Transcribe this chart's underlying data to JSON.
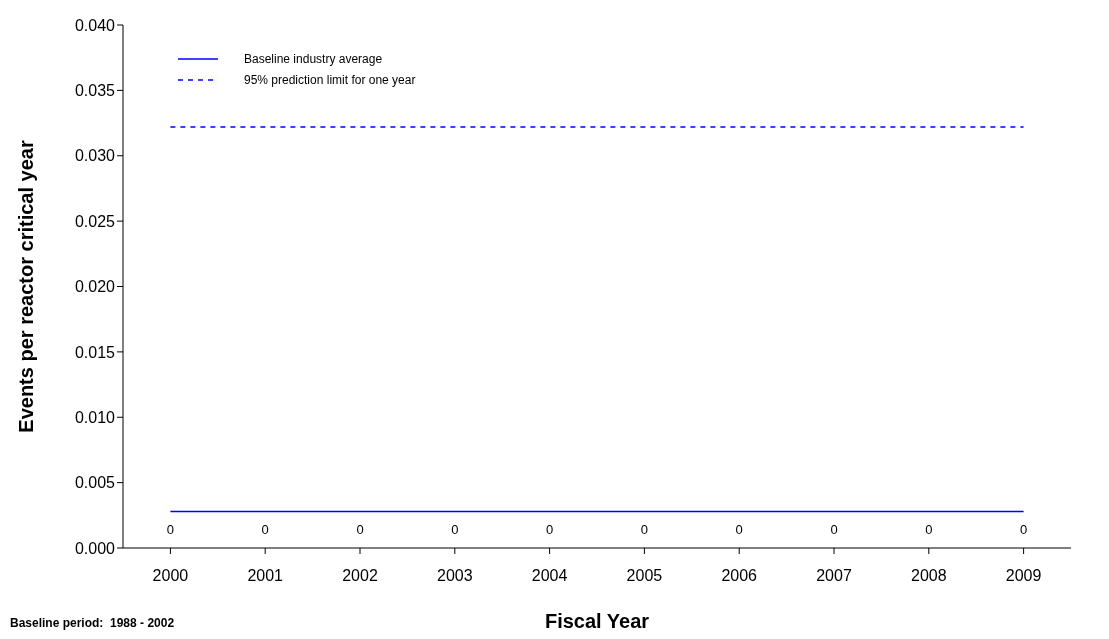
{
  "chart_data": {
    "type": "bar",
    "xlabel": "Fiscal Year",
    "ylabel": "Events per reactor critical year",
    "categories": [
      "2000",
      "2001",
      "2002",
      "2003",
      "2004",
      "2005",
      "2006",
      "2007",
      "2008",
      "2009"
    ],
    "series": [
      {
        "color": "#0000ff",
        "values": [
          0,
          0,
          0,
          0,
          0,
          0,
          0,
          0,
          0,
          0
        ],
        "value_labels": [
          "0",
          "0",
          "0",
          "0",
          "0",
          "0",
          "0",
          "0",
          "0",
          "0"
        ]
      },
      {
        "type": "line",
        "name": "Baseline industry average",
        "color": "#0000ff",
        "line_style": "solid",
        "values": [
          0.0028,
          0.0028,
          0.0028,
          0.0028,
          0.0028,
          0.0028,
          0.0028,
          0.0028,
          0.0028,
          0.0028
        ]
      },
      {
        "type": "line",
        "name": "95% prediction limit for one year",
        "color": "#0000ff",
        "line_style": "dashed",
        "values": [
          0.0322,
          0.0322,
          0.0322,
          0.0322,
          0.0322,
          0.0322,
          0.0322,
          0.0322,
          0.0322,
          0.0322
        ]
      }
    ],
    "ylim": [
      0,
      0.04
    ],
    "yticks": [
      {
        "value": 0,
        "label": "0.000"
      },
      {
        "value": 0.005,
        "label": "0.005"
      },
      {
        "value": 0.01,
        "label": "0.010"
      },
      {
        "value": 0.015,
        "label": "0.015"
      },
      {
        "value": 0.02,
        "label": "0.020"
      },
      {
        "value": 0.025,
        "label": "0.025"
      },
      {
        "value": 0.03,
        "label": "0.030"
      },
      {
        "value": 0.035,
        "label": "0.035"
      },
      {
        "value": 0.04,
        "label": "0.040"
      }
    ],
    "grid": false,
    "legend": "top left",
    "marker": "none",
    "annotations": [
      "Baseline period:  1988 - 2002"
    ]
  }
}
